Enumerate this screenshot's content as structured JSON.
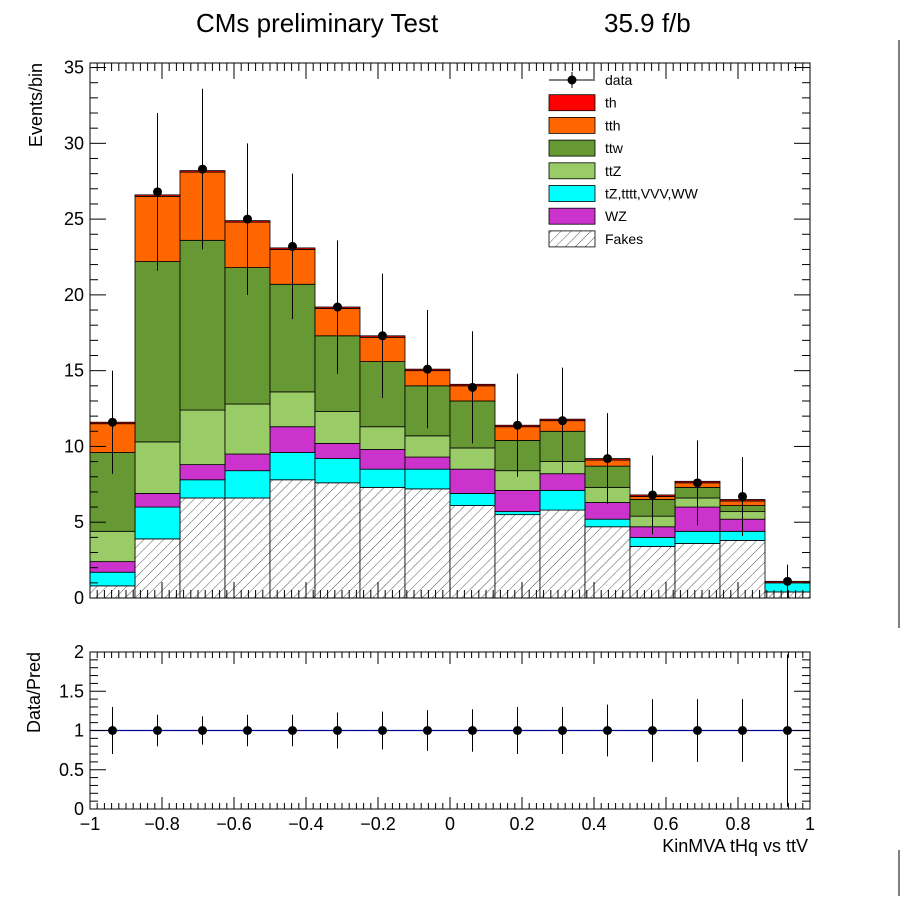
{
  "chart_data": {
    "type": "stacked-histogram",
    "title": "CMs preliminary Test",
    "lumi": "35.9 f/b",
    "ylabel": "Events/bin",
    "xlabel": "KinMVA tHq vs ttV",
    "xlim": [
      -1,
      1
    ],
    "ylim": [
      0,
      35.3
    ],
    "bin_edges": [
      -1.0,
      -0.875,
      -0.75,
      -0.625,
      -0.5,
      -0.375,
      -0.25,
      -0.125,
      0.0,
      0.125,
      0.25,
      0.375,
      0.5,
      0.625,
      0.75,
      0.875,
      1.0
    ],
    "x_ticks": [
      -1,
      -0.8,
      -0.6,
      -0.4,
      -0.2,
      0,
      0.2,
      0.4,
      0.6,
      0.8,
      1
    ],
    "x_tick_labels": [
      "−1",
      "−0.8",
      "−0.6",
      "−0.4",
      "−0.2",
      "0",
      "0.2",
      "0.4",
      "0.6",
      "0.8",
      "1"
    ],
    "y_ticks": [
      0,
      5,
      10,
      15,
      20,
      25,
      30,
      35
    ],
    "y_tick_labels": [
      "0",
      "5",
      "10",
      "15",
      "20",
      "25",
      "30",
      "35"
    ],
    "stack": [
      {
        "name": "Fakes",
        "color": "#ffffff",
        "hatch": true,
        "values": [
          0.8,
          3.9,
          6.6,
          6.6,
          7.8,
          7.6,
          7.3,
          7.2,
          6.1,
          5.5,
          5.8,
          4.7,
          3.4,
          3.6,
          3.8,
          0.4
        ]
      },
      {
        "name": "tZ,tttt,VVV,WW",
        "color": "#00ffff",
        "values": [
          0.9,
          2.1,
          1.2,
          1.8,
          1.8,
          1.6,
          1.2,
          1.3,
          0.8,
          0.2,
          1.3,
          0.5,
          0.6,
          0.8,
          0.6,
          0.6
        ]
      },
      {
        "name": "WZ",
        "color": "#cc33cc",
        "values": [
          0.7,
          0.9,
          1.0,
          1.1,
          1.7,
          1.0,
          1.3,
          0.8,
          1.6,
          1.4,
          1.1,
          1.1,
          0.7,
          1.6,
          0.8,
          0.0
        ]
      },
      {
        "name": "ttZ",
        "color": "#99cc66",
        "values": [
          2.0,
          3.4,
          3.6,
          3.3,
          2.3,
          2.1,
          1.5,
          1.4,
          1.4,
          1.3,
          0.8,
          1.0,
          0.7,
          0.6,
          0.5,
          0.0
        ]
      },
      {
        "name": "ttw",
        "color": "#669933",
        "values": [
          5.2,
          11.9,
          11.2,
          9.0,
          7.1,
          5.0,
          4.3,
          3.3,
          3.1,
          2.0,
          2.0,
          1.4,
          1.1,
          0.7,
          0.4,
          0.0
        ]
      },
      {
        "name": "tth",
        "color": "#ff6600",
        "values": [
          1.9,
          4.3,
          4.5,
          3.0,
          2.3,
          1.8,
          1.6,
          1.0,
          1.0,
          0.9,
          0.7,
          0.4,
          0.2,
          0.3,
          0.3,
          0.0
        ]
      },
      {
        "name": "th",
        "color": "#ff0000",
        "values": [
          0.1,
          0.1,
          0.1,
          0.1,
          0.1,
          0.1,
          0.1,
          0.1,
          0.1,
          0.1,
          0.1,
          0.1,
          0.1,
          0.1,
          0.1,
          0.1
        ]
      }
    ],
    "data_points": {
      "name": "data",
      "x": [
        -0.9375,
        -0.8125,
        -0.6875,
        -0.5625,
        -0.4375,
        -0.3125,
        -0.1875,
        -0.0625,
        0.0625,
        0.1875,
        0.3125,
        0.4375,
        0.5625,
        0.6875,
        0.8125,
        0.9375
      ],
      "y": [
        11.6,
        26.8,
        28.3,
        25.0,
        23.2,
        19.2,
        17.3,
        15.1,
        13.9,
        11.4,
        11.7,
        9.2,
        6.8,
        7.6,
        6.7,
        1.1
      ],
      "err_up": [
        3.4,
        5.2,
        5.3,
        5.0,
        4.8,
        4.4,
        4.1,
        3.9,
        3.7,
        3.4,
        3.5,
        3.0,
        2.6,
        2.8,
        2.6,
        1.1
      ],
      "err_down": [
        3.4,
        5.2,
        5.3,
        5.0,
        4.8,
        4.4,
        4.1,
        3.9,
        3.7,
        3.4,
        3.5,
        3.0,
        2.6,
        2.8,
        2.6,
        1.1
      ]
    },
    "legend": {
      "placement": "top-right",
      "entries": [
        "data",
        "th",
        "tth",
        "ttw",
        "ttZ",
        "tZ,tttt,VVV,WW",
        "WZ",
        "Fakes"
      ]
    },
    "ratio": {
      "ylabel": "Data/Pred",
      "ylim": [
        0,
        2
      ],
      "y_ticks": [
        0,
        0.5,
        1,
        1.5,
        2
      ],
      "y_tick_labels": [
        "0",
        "0.5",
        "1",
        "1.5",
        "2"
      ],
      "reference_line": 1,
      "line_color": "#000099",
      "y": [
        1,
        1,
        1,
        1,
        1,
        1,
        1,
        1,
        1,
        1,
        1,
        1,
        1,
        1,
        1,
        1
      ],
      "err": [
        0.3,
        0.2,
        0.18,
        0.2,
        0.2,
        0.23,
        0.24,
        0.26,
        0.27,
        0.3,
        0.3,
        0.33,
        0.4,
        0.4,
        0.4,
        0.97
      ]
    }
  }
}
